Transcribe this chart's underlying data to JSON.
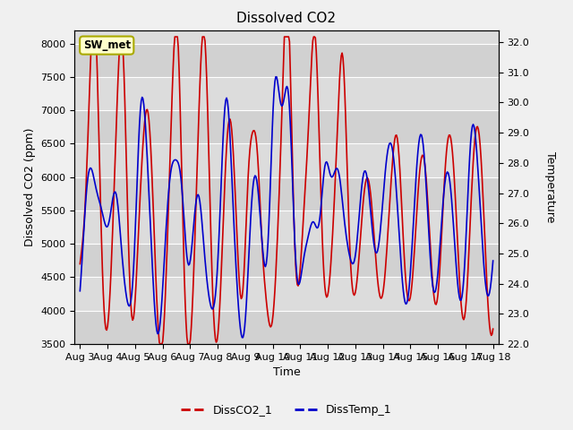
{
  "title": "Dissolved CO2",
  "xlabel": "Time",
  "ylabel_left": "Dissolved CO2 (ppm)",
  "ylabel_right": "Temperature",
  "ylim_left": [
    3500,
    8200
  ],
  "ylim_right": [
    22.0,
    32.4
  ],
  "yticks_left": [
    3500,
    4000,
    4500,
    5000,
    5500,
    6000,
    6500,
    7000,
    7500,
    8000
  ],
  "yticks_right": [
    22.0,
    23.0,
    24.0,
    25.0,
    26.0,
    27.0,
    28.0,
    29.0,
    30.0,
    31.0,
    32.0
  ],
  "xtick_labels": [
    "Aug 3",
    "Aug 4",
    "Aug 5",
    "Aug 6",
    "Aug 7",
    "Aug 8",
    "Aug 9",
    "Aug 10",
    "Aug 11",
    "Aug 12",
    "Aug 13",
    "Aug 14",
    "Aug 15",
    "Aug 16",
    "Aug 17",
    "Aug 18"
  ],
  "label_box_text": "SW_met",
  "label_box_facecolor": "#ffffcc",
  "label_box_edgecolor": "#aaaa00",
  "line1_color": "#cc0000",
  "line2_color": "#0000cc",
  "line1_label": "DissCO2_1",
  "line2_label": "DissTemp_1",
  "fig_facecolor": "#f0f0f0",
  "plot_facecolor": "#dcdcdc",
  "grid_color": "#ffffff"
}
